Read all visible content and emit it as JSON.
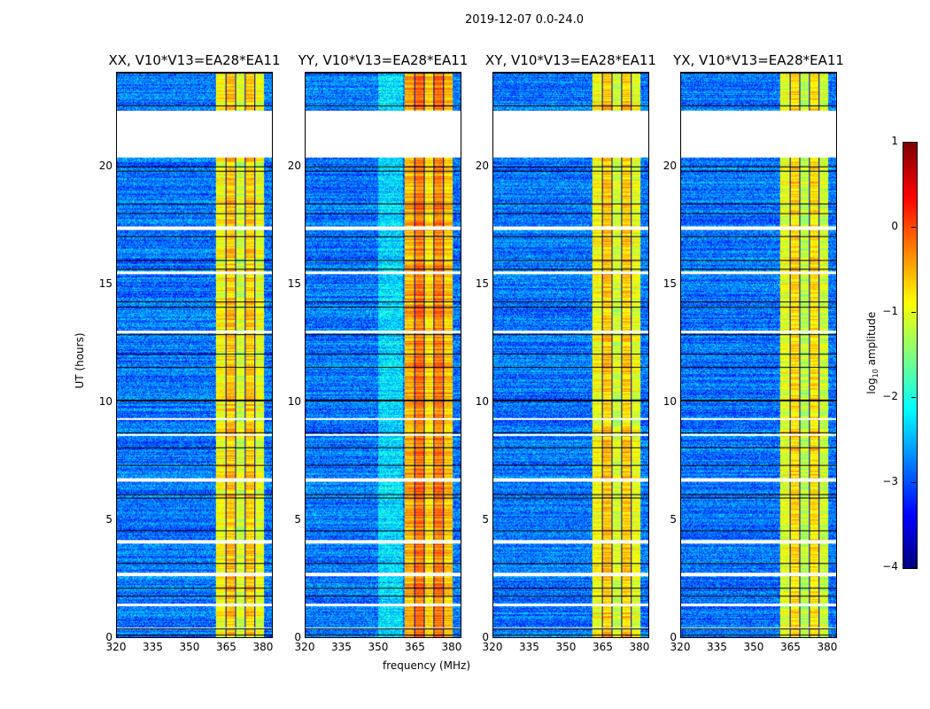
{
  "chart_data": {
    "type": "heatmap",
    "title": "2019-12-07 0.0-24.0",
    "xlabel": "frequency (MHz)",
    "ylabel": "UT (hours)",
    "xlim": [
      320,
      384
    ],
    "ylim": [
      0,
      24
    ],
    "xticks": [
      "320",
      "335",
      "350",
      "365",
      "380"
    ],
    "xtick_values": [
      320,
      335,
      350,
      365,
      380
    ],
    "yticks": [
      "0",
      "5",
      "10",
      "15",
      "20"
    ],
    "ytick_values": [
      0,
      5,
      10,
      15,
      20
    ],
    "panels": [
      {
        "title": "XX, V10*V13=EA28*EA11",
        "band_level": -0.9
      },
      {
        "title": "YY, V10*V13=EA28*EA11",
        "band_level": -0.5
      },
      {
        "title": "XY, V10*V13=EA28*EA11",
        "band_level": -0.9
      },
      {
        "title": "YX, V10*V13=EA28*EA11",
        "band_level": -1.0
      }
    ],
    "background_level": -2.8,
    "band_range_mhz": [
      360.5,
      380.5
    ],
    "flagged_hours": [
      [
        20.4,
        22.4
      ],
      [
        17.35,
        17.5
      ],
      [
        15.45,
        15.55
      ],
      [
        12.95,
        13.05
      ],
      [
        9.25,
        9.35
      ],
      [
        8.6,
        8.65
      ],
      [
        6.62,
        6.78
      ],
      [
        4.0,
        4.15
      ],
      [
        2.62,
        2.75
      ],
      [
        1.35,
        1.45
      ],
      [
        0.4,
        0.45
      ]
    ],
    "colorbar": {
      "label": "log10 amplitude",
      "label_main": "log",
      "label_sub": "10",
      "label_rest": " amplitude",
      "ticks": [
        "1",
        "0",
        "−1",
        "−2",
        "−3",
        "−4"
      ],
      "tick_values": [
        1,
        0,
        -1,
        -2,
        -3,
        -4
      ],
      "range": [
        -4,
        1
      ],
      "colormap": "jet"
    }
  }
}
